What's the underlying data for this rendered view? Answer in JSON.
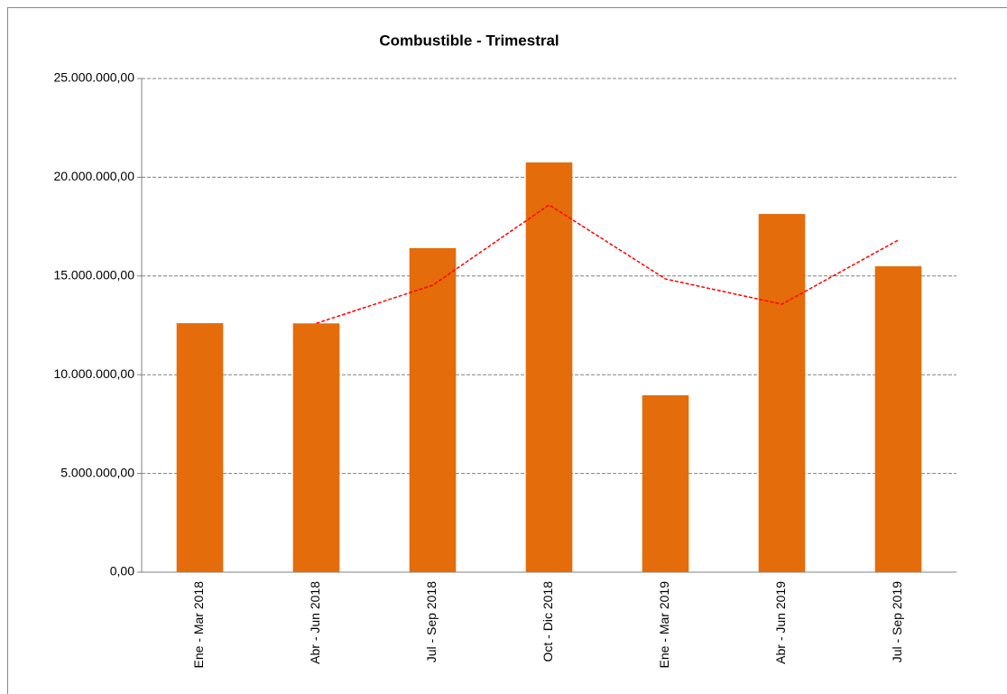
{
  "chart_data": {
    "type": "bar",
    "title": "Combustible - Trimestral",
    "categories": [
      "Ene - Mar 2018",
      "Abr - Jun 2018",
      "Jul - Sep 2018",
      "Oct - Dic 2018",
      "Ene - Mar 2019",
      "Abr - Jun 2019",
      "Jul - Sep 2019"
    ],
    "series": [
      {
        "type": "bar",
        "color": "#e46c0a",
        "values": [
          12610000,
          12600000,
          16410000,
          20750000,
          8960000,
          18140000,
          15490000
        ]
      },
      {
        "type": "line",
        "color": "#ff0000",
        "dashed": true,
        "values": [
          null,
          12600000,
          14530000,
          18600000,
          14850000,
          13570000,
          16820000
        ]
      }
    ],
    "ylim": [
      0,
      25000000
    ],
    "yticks": [
      {
        "value": 0,
        "label": "0,00"
      },
      {
        "value": 5000000,
        "label": "5.000.000,00"
      },
      {
        "value": 10000000,
        "label": "10.000.000,00"
      },
      {
        "value": 15000000,
        "label": "15.000.000,00"
      },
      {
        "value": 20000000,
        "label": "20.000.000,00"
      },
      {
        "value": 25000000,
        "label": "25.000.000,00"
      }
    ],
    "grid": true
  }
}
